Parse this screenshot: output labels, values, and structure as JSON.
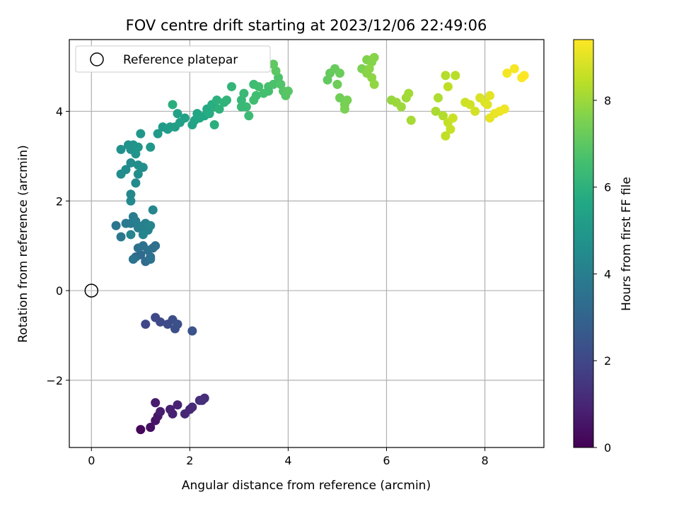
{
  "chart_data": {
    "type": "scatter",
    "title": "FOV centre drift starting at 2023/12/06 22:49:06",
    "xlabel": "Angular distance from reference (arcmin)",
    "ylabel": "Rotation from reference (arcmin)",
    "xlim": [
      -0.45,
      9.2
    ],
    "ylim": [
      -3.5,
      5.6
    ],
    "xticks": [
      0,
      2,
      4,
      6,
      8
    ],
    "yticks": [
      -2,
      0,
      2,
      4
    ],
    "grid": true,
    "legend": {
      "label": "Reference platepar",
      "placement": "top-left"
    },
    "reference_point": {
      "x": 0,
      "y": 0
    },
    "colorbar": {
      "label": "Hours from first FF file",
      "colormap": "viridis",
      "range": [
        0,
        9.4
      ],
      "ticks": [
        0,
        2,
        4,
        6,
        8
      ]
    },
    "points": [
      [
        1.0,
        -3.1,
        0.2
      ],
      [
        1.2,
        -3.05,
        0.4
      ],
      [
        1.3,
        -2.9,
        0.5
      ],
      [
        1.35,
        -2.8,
        0.6
      ],
      [
        1.3,
        -2.5,
        0.7
      ],
      [
        1.4,
        -2.7,
        0.75
      ],
      [
        1.6,
        -2.65,
        0.8
      ],
      [
        1.65,
        -2.75,
        0.85
      ],
      [
        1.75,
        -2.55,
        0.9
      ],
      [
        1.9,
        -2.75,
        1.0
      ],
      [
        2.0,
        -2.65,
        1.05
      ],
      [
        2.05,
        -2.6,
        1.1
      ],
      [
        2.2,
        -2.45,
        1.15
      ],
      [
        2.3,
        -2.4,
        1.2
      ],
      [
        2.25,
        -2.45,
        1.25
      ],
      [
        1.1,
        -0.75,
        2.0
      ],
      [
        1.3,
        -0.6,
        2.05
      ],
      [
        1.4,
        -0.7,
        2.1
      ],
      [
        1.55,
        -0.75,
        2.15
      ],
      [
        1.65,
        -0.65,
        2.2
      ],
      [
        1.7,
        -0.85,
        2.25
      ],
      [
        1.75,
        -0.75,
        2.3
      ],
      [
        2.05,
        -0.9,
        2.4
      ],
      [
        0.9,
        0.75,
        3.2
      ],
      [
        1.0,
        0.8,
        3.25
      ],
      [
        1.1,
        0.65,
        3.3
      ],
      [
        1.2,
        0.75,
        3.35
      ],
      [
        1.25,
        0.95,
        3.4
      ],
      [
        1.3,
        1.0,
        3.45
      ],
      [
        1.05,
        1.0,
        3.5
      ],
      [
        0.95,
        0.95,
        3.55
      ],
      [
        0.85,
        0.7,
        3.6
      ],
      [
        1.15,
        0.9,
        3.5
      ],
      [
        1.2,
        0.7,
        3.55
      ],
      [
        0.5,
        1.45,
        3.7
      ],
      [
        0.6,
        1.2,
        3.75
      ],
      [
        0.7,
        1.5,
        3.8
      ],
      [
        0.8,
        1.5,
        3.85
      ],
      [
        0.85,
        1.65,
        3.9
      ],
      [
        0.9,
        1.55,
        3.95
      ],
      [
        0.95,
        1.4,
        4.0
      ],
      [
        1.05,
        1.45,
        4.05
      ],
      [
        1.1,
        1.5,
        4.1
      ],
      [
        1.15,
        1.35,
        4.15
      ],
      [
        1.2,
        1.45,
        4.2
      ],
      [
        1.05,
        1.25,
        4.25
      ],
      [
        0.8,
        1.25,
        4.3
      ],
      [
        1.25,
        1.8,
        4.3
      ],
      [
        0.8,
        2.15,
        4.35
      ],
      [
        0.8,
        2.0,
        4.4
      ],
      [
        0.9,
        2.4,
        4.45
      ],
      [
        0.7,
        2.7,
        4.5
      ],
      [
        0.8,
        2.85,
        4.55
      ],
      [
        0.95,
        2.8,
        4.6
      ],
      [
        1.05,
        2.75,
        4.65
      ],
      [
        0.95,
        2.6,
        4.6
      ],
      [
        0.6,
        2.6,
        4.55
      ],
      [
        0.6,
        3.15,
        4.7
      ],
      [
        0.75,
        3.25,
        4.75
      ],
      [
        0.8,
        3.15,
        4.8
      ],
      [
        0.9,
        3.05,
        4.85
      ],
      [
        0.95,
        3.2,
        4.9
      ],
      [
        1.0,
        3.5,
        4.95
      ],
      [
        1.2,
        3.2,
        5.0
      ],
      [
        0.85,
        3.25,
        4.8
      ],
      [
        1.35,
        3.5,
        5.05
      ],
      [
        1.45,
        3.65,
        5.1
      ],
      [
        1.55,
        3.6,
        5.15
      ],
      [
        1.6,
        3.65,
        5.2
      ],
      [
        1.7,
        3.65,
        5.25
      ],
      [
        1.8,
        3.75,
        5.3
      ],
      [
        1.9,
        3.85,
        5.35
      ],
      [
        1.75,
        3.95,
        5.4
      ],
      [
        2.05,
        3.7,
        5.45
      ],
      [
        2.1,
        3.8,
        5.5
      ],
      [
        2.15,
        3.95,
        5.55
      ],
      [
        2.2,
        3.85,
        5.6
      ],
      [
        2.3,
        3.9,
        5.65
      ],
      [
        2.35,
        4.05,
        5.7
      ],
      [
        2.4,
        3.95,
        5.75
      ],
      [
        2.45,
        4.15,
        5.8
      ],
      [
        2.5,
        4.1,
        5.85
      ],
      [
        2.5,
        3.7,
        5.9
      ],
      [
        2.55,
        4.25,
        5.95
      ],
      [
        2.6,
        4.05,
        6.0
      ],
      [
        2.7,
        4.2,
        6.05
      ],
      [
        2.75,
        4.25,
        6.1
      ],
      [
        2.85,
        4.55,
        6.15
      ],
      [
        1.65,
        4.15,
        5.9
      ],
      [
        3.05,
        4.25,
        6.25
      ],
      [
        3.1,
        4.4,
        6.3
      ],
      [
        3.15,
        4.1,
        6.35
      ],
      [
        3.2,
        3.9,
        6.4
      ],
      [
        3.3,
        4.6,
        6.45
      ],
      [
        3.35,
        4.35,
        6.5
      ],
      [
        3.4,
        4.55,
        6.55
      ],
      [
        3.5,
        4.4,
        6.6
      ],
      [
        3.6,
        4.55,
        6.65
      ],
      [
        3.7,
        4.6,
        6.7
      ],
      [
        3.8,
        4.75,
        6.75
      ],
      [
        3.85,
        4.6,
        6.8
      ],
      [
        3.9,
        4.45,
        6.85
      ],
      [
        3.95,
        4.35,
        6.9
      ],
      [
        4.0,
        4.45,
        6.95
      ],
      [
        3.75,
        4.9,
        7.0
      ],
      [
        3.7,
        5.05,
        7.05
      ],
      [
        3.3,
        4.25,
        6.5
      ],
      [
        3.05,
        4.1,
        6.3
      ],
      [
        3.6,
        4.45,
        6.6
      ],
      [
        4.8,
        4.7,
        7.1
      ],
      [
        4.85,
        4.85,
        7.15
      ],
      [
        4.95,
        4.95,
        7.2
      ],
      [
        5.05,
        4.85,
        7.25
      ],
      [
        5.0,
        4.6,
        7.3
      ],
      [
        5.05,
        4.3,
        7.35
      ],
      [
        5.15,
        4.15,
        7.4
      ],
      [
        5.2,
        4.25,
        7.45
      ],
      [
        5.15,
        4.05,
        7.5
      ],
      [
        5.5,
        4.95,
        7.55
      ],
      [
        5.6,
        5.15,
        7.6
      ],
      [
        5.7,
        5.1,
        7.65
      ],
      [
        5.75,
        5.2,
        7.7
      ],
      [
        5.65,
        4.95,
        7.75
      ],
      [
        5.7,
        4.75,
        7.8
      ],
      [
        5.75,
        4.6,
        7.85
      ],
      [
        5.6,
        4.85,
        7.7
      ],
      [
        6.1,
        4.25,
        7.9
      ],
      [
        6.2,
        4.2,
        7.95
      ],
      [
        6.3,
        4.1,
        8.0
      ],
      [
        6.4,
        4.3,
        8.05
      ],
      [
        6.45,
        4.4,
        8.1
      ],
      [
        6.5,
        3.8,
        8.15
      ],
      [
        7.0,
        4.0,
        8.2
      ],
      [
        7.05,
        4.3,
        8.25
      ],
      [
        7.15,
        3.9,
        8.3
      ],
      [
        7.2,
        4.8,
        8.35
      ],
      [
        7.4,
        4.8,
        8.4
      ],
      [
        7.25,
        4.55,
        8.45
      ],
      [
        7.2,
        3.45,
        8.5
      ],
      [
        7.25,
        3.75,
        8.55
      ],
      [
        7.3,
        3.6,
        8.6
      ],
      [
        7.35,
        3.85,
        8.65
      ],
      [
        7.6,
        4.2,
        8.7
      ],
      [
        7.7,
        4.15,
        8.75
      ],
      [
        7.8,
        4.0,
        8.8
      ],
      [
        7.9,
        4.3,
        8.85
      ],
      [
        8.0,
        4.2,
        8.9
      ],
      [
        8.05,
        4.15,
        8.95
      ],
      [
        8.1,
        4.35,
        9.0
      ],
      [
        8.1,
        3.85,
        9.05
      ],
      [
        8.2,
        3.95,
        9.1
      ],
      [
        8.3,
        4.0,
        9.15
      ],
      [
        8.4,
        4.05,
        9.2
      ],
      [
        8.45,
        4.85,
        9.25
      ],
      [
        8.6,
        4.95,
        9.3
      ],
      [
        8.75,
        4.75,
        9.35
      ],
      [
        8.8,
        4.8,
        9.4
      ]
    ]
  }
}
